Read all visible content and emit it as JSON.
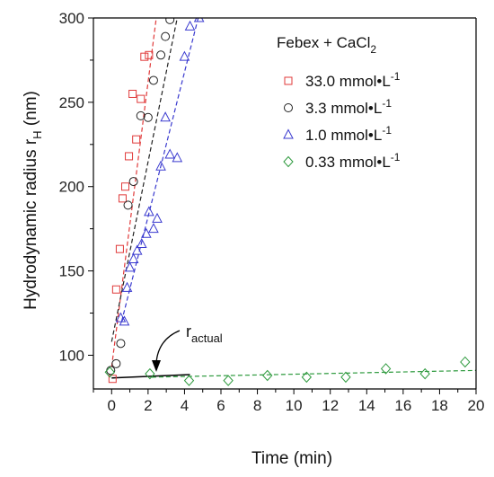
{
  "chart_data": {
    "type": "scatter",
    "xlabel": "Time (min)",
    "ylabel": "Hydrodynamic radius r",
    "ylabel_sub": "H",
    "ylabel_unit": " (nm)",
    "xlim": [
      -1,
      20
    ],
    "ylim": [
      80,
      300
    ],
    "xticks": [
      0,
      2,
      4,
      6,
      8,
      10,
      12,
      14,
      16,
      18,
      20
    ],
    "yticks": [
      100,
      150,
      200,
      250,
      300
    ],
    "grid": false,
    "legend": {
      "placement": "top-right",
      "title": "Febex + CaCl",
      "title_sub": "2"
    },
    "series": [
      {
        "name": "33.0 mmol•L",
        "name_sup": "-1",
        "marker": "square",
        "color": "#e03a3a",
        "x": [
          0.05,
          0.25,
          0.45,
          0.6,
          0.75,
          0.95,
          1.15,
          1.35,
          1.6,
          1.8,
          2.05
        ],
        "y": [
          86,
          139,
          163,
          193,
          200,
          218,
          255,
          228,
          252,
          277,
          278
        ],
        "fit": {
          "x": [
            0,
            2.45
          ],
          "y": [
            93,
            300
          ]
        }
      },
      {
        "name": "3.3 mmol•L",
        "name_sup": "-1",
        "marker": "circle",
        "color": "#222222",
        "x": [
          -0.05,
          0.25,
          0.5,
          0.9,
          1.2,
          1.6,
          2.0,
          2.3,
          2.7,
          2.95,
          3.2
        ],
        "y": [
          91,
          95,
          107,
          189,
          203,
          242,
          241,
          263,
          278,
          289,
          299
        ],
        "fit": {
          "x": [
            0,
            3.6
          ],
          "y": [
            108,
            300
          ]
        }
      },
      {
        "name": "1.0 mmol•L",
        "name_sup": "-1",
        "marker": "triangle",
        "color": "#3a3acf",
        "x": [
          0.5,
          0.7,
          0.85,
          1.0,
          1.2,
          1.4,
          1.65,
          1.9,
          2.05,
          2.3,
          2.5,
          2.7,
          2.95,
          3.2,
          3.6,
          4.0,
          4.3,
          4.8
        ],
        "y": [
          122,
          120,
          140,
          152,
          157,
          162,
          166,
          172,
          185,
          175,
          181,
          212,
          241,
          219,
          217,
          277,
          295,
          300
        ],
        "fit": {
          "x": [
            0.55,
            4.75
          ],
          "y": [
            120,
            300
          ]
        }
      },
      {
        "name": "0.33 mmol•L",
        "name_sup": "-1",
        "marker": "diamond",
        "color": "#2e9a3e",
        "x": [
          -0.1,
          2.1,
          4.25,
          6.4,
          8.55,
          10.7,
          12.85,
          15.05,
          17.2,
          19.4
        ],
        "y": [
          90,
          89,
          85,
          85,
          88,
          87,
          87,
          92,
          89,
          96
        ],
        "fit": {
          "x": [
            2.2,
            20
          ],
          "y": [
            87,
            91
          ]
        }
      }
    ],
    "baseline": {
      "x": [
        0,
        4.3
      ],
      "y": [
        86.5,
        88.5
      ],
      "color": "#000000"
    },
    "annotation": {
      "label": "r",
      "label_sub": "actual",
      "target_x": 2.35,
      "target_y": 88
    }
  }
}
